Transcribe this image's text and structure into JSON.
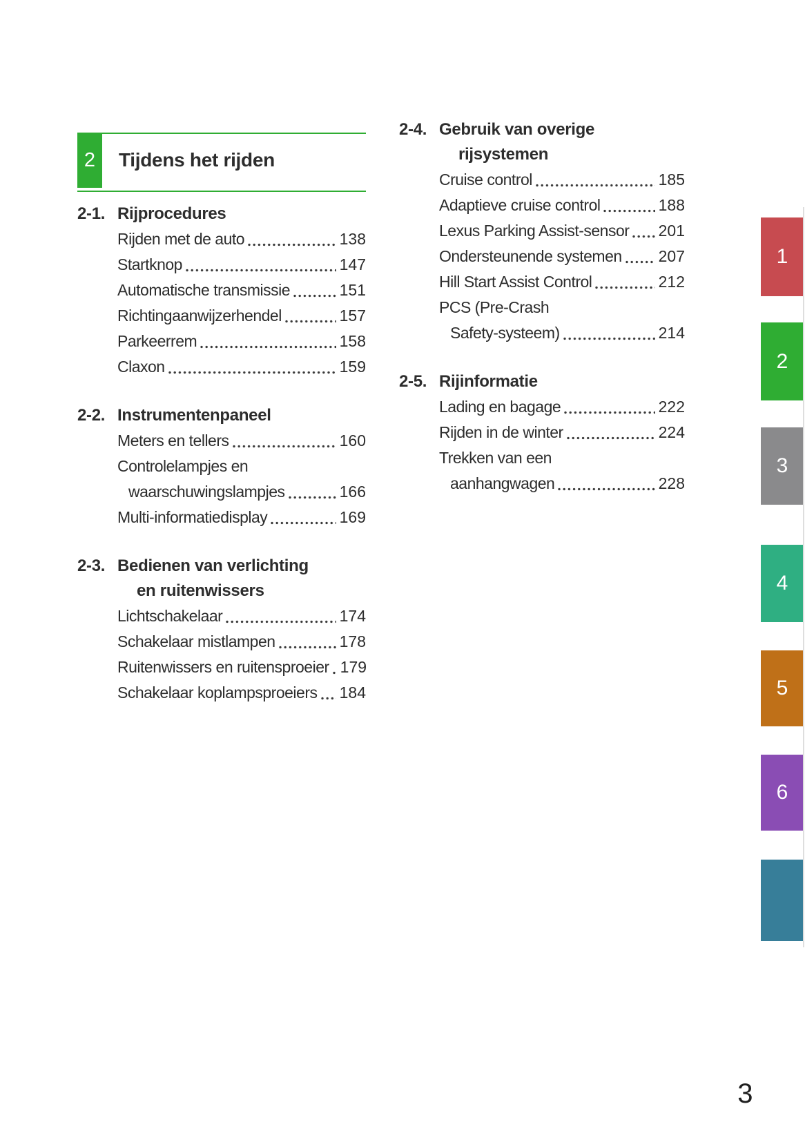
{
  "header": {
    "chapter_number": "2",
    "chapter_title": "Tijdens het rijden"
  },
  "toc": {
    "left": [
      {
        "num": "2-1.",
        "title": [
          "Rijprocedures"
        ],
        "entries": [
          {
            "lines": [
              "Rijden met de auto"
            ],
            "page": "138"
          },
          {
            "lines": [
              "Startknop"
            ],
            "page": "147"
          },
          {
            "lines": [
              "Automatische transmissie"
            ],
            "page": "151"
          },
          {
            "lines": [
              "Richtingaanwijzerhendel"
            ],
            "page": "157"
          },
          {
            "lines": [
              "Parkeerrem"
            ],
            "page": "158"
          },
          {
            "lines": [
              "Claxon"
            ],
            "page": "159"
          }
        ]
      },
      {
        "num": "2-2.",
        "title": [
          "Instrumentenpaneel"
        ],
        "entries": [
          {
            "lines": [
              "Meters en tellers"
            ],
            "page": "160"
          },
          {
            "lines": [
              "Controlelampjes en",
              "waarschuwingslampjes"
            ],
            "page": "166"
          },
          {
            "lines": [
              "Multi-informatiedisplay"
            ],
            "page": "169"
          }
        ]
      },
      {
        "num": "2-3.",
        "title": [
          "Bedienen van verlichting",
          "en ruitenwissers"
        ],
        "entries": [
          {
            "lines": [
              "Lichtschakelaar"
            ],
            "page": "174"
          },
          {
            "lines": [
              "Schakelaar mistlampen"
            ],
            "page": "178"
          },
          {
            "lines": [
              "Ruitenwissers en ruitensproeier"
            ],
            "page": "179"
          },
          {
            "lines": [
              "Schakelaar koplampsproeiers"
            ],
            "page": "184"
          }
        ]
      }
    ],
    "right": [
      {
        "num": "2-4.",
        "title": [
          "Gebruik van overige",
          "rijsystemen"
        ],
        "entries": [
          {
            "lines": [
              "Cruise control"
            ],
            "page": "185"
          },
          {
            "lines": [
              "Adaptieve cruise control"
            ],
            "page": "188"
          },
          {
            "lines": [
              "Lexus Parking Assist-sensor"
            ],
            "page": "201"
          },
          {
            "lines": [
              "Ondersteunende systemen"
            ],
            "page": "207"
          },
          {
            "lines": [
              "Hill Start Assist Control"
            ],
            "page": "212"
          },
          {
            "lines": [
              "PCS (Pre-Crash",
              "Safety-systeem)"
            ],
            "page": "214"
          }
        ]
      },
      {
        "num": "2-5.",
        "title": [
          "Rijinformatie"
        ],
        "entries": [
          {
            "lines": [
              "Lading en bagage"
            ],
            "page": "222"
          },
          {
            "lines": [
              "Rijden in de winter"
            ],
            "page": "224"
          },
          {
            "lines": [
              "Trekken van een",
              "aanhangwagen"
            ],
            "page": "228"
          }
        ]
      }
    ]
  },
  "side_tabs": [
    {
      "label": "1",
      "color": "#c74b50"
    },
    {
      "label": "2",
      "color": "#2fad33"
    },
    {
      "label": "3",
      "color": "#8a8a8c"
    },
    {
      "label": "4",
      "color": "#2faf82"
    },
    {
      "label": "5",
      "color": "#bf7018"
    },
    {
      "label": "6",
      "color": "#8a4db4"
    },
    {
      "label": "",
      "color": "#377e99"
    }
  ],
  "footer": {
    "page_number": "3"
  },
  "colors": {
    "accent_green": "#2fad33",
    "text": "#2d2d2d"
  }
}
